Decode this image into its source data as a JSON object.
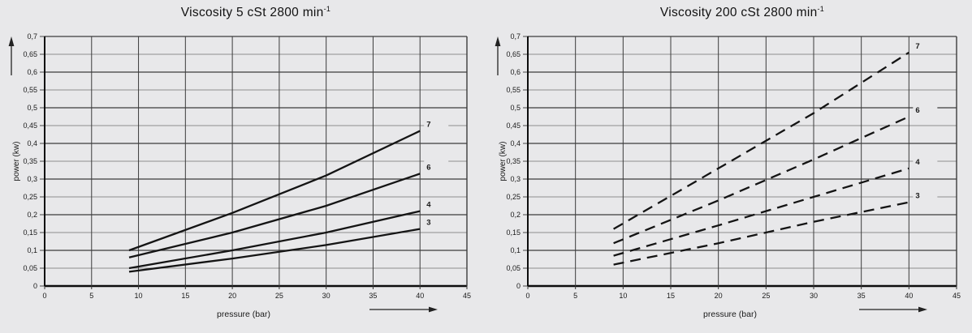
{
  "colors": {
    "background": "#e8e8ea",
    "axis": "#0d0d0d",
    "grid_major": "#3c3c3c",
    "grid_minor": "#8e8e8e",
    "curve": "#141414",
    "text": "#1a1a1a",
    "arrow": "#222222"
  },
  "chart_data": [
    {
      "type": "line",
      "title": "Viscosity 5 cSt 2800 min",
      "title_superscript": "-1",
      "xlabel": "pressure (bar)",
      "ylabel": "power (kw)",
      "xlim": [
        0,
        45
      ],
      "ylim": [
        0,
        0.7
      ],
      "x_ticks": [
        0,
        5,
        10,
        15,
        20,
        25,
        30,
        35,
        40,
        45
      ],
      "x_tick_labels": [
        "0",
        "5",
        "10",
        "15",
        "20",
        "25",
        "30",
        "35",
        "40",
        "45"
      ],
      "y_ticks": [
        0,
        0.05,
        0.1,
        0.15,
        0.2,
        0.25,
        0.3,
        0.35,
        0.4,
        0.45,
        0.5,
        0.55,
        0.6,
        0.65,
        0.7
      ],
      "y_tick_labels": [
        "0",
        "0,05",
        "0,1",
        "0,15",
        "0,2",
        "0,25",
        "0,3",
        "0,35",
        "0,4",
        "0,45",
        "0,5",
        "0,55",
        "0,6",
        "0,65",
        "0,7"
      ],
      "grid": true,
      "legend_position": "curve-end-labels",
      "line_style": "solid",
      "series": [
        {
          "name": "7",
          "points": [
            [
              9,
              0.1
            ],
            [
              20,
              0.205
            ],
            [
              30,
              0.31
            ],
            [
              40,
              0.435
            ]
          ]
        },
        {
          "name": "6",
          "points": [
            [
              9,
              0.08
            ],
            [
              20,
              0.15
            ],
            [
              30,
              0.225
            ],
            [
              40,
              0.315
            ]
          ]
        },
        {
          "name": "4",
          "points": [
            [
              9,
              0.05
            ],
            [
              20,
              0.1
            ],
            [
              30,
              0.15
            ],
            [
              40,
              0.21
            ]
          ]
        },
        {
          "name": "3",
          "points": [
            [
              9,
              0.04
            ],
            [
              20,
              0.077
            ],
            [
              30,
              0.115
            ],
            [
              40,
              0.16
            ]
          ]
        }
      ]
    },
    {
      "type": "line",
      "title": "Viscosity 200 cSt 2800 min",
      "title_superscript": "-1",
      "xlabel": "pressure (bar)",
      "ylabel": "power (kw)",
      "xlim": [
        0,
        45
      ],
      "ylim": [
        0,
        0.7
      ],
      "x_ticks": [
        0,
        5,
        10,
        15,
        20,
        25,
        30,
        35,
        40,
        45
      ],
      "x_tick_labels": [
        "0",
        "5",
        "10",
        "15",
        "20",
        "25",
        "30",
        "35",
        "40",
        "45"
      ],
      "y_ticks": [
        0,
        0.05,
        0.1,
        0.15,
        0.2,
        0.25,
        0.3,
        0.35,
        0.4,
        0.45,
        0.5,
        0.55,
        0.6,
        0.65,
        0.7
      ],
      "y_tick_labels": [
        "0",
        "0,05",
        "0,1",
        "0,15",
        "0,2",
        "0,25",
        "0,3",
        "0,35",
        "0,4",
        "0,45",
        "0,5",
        "0,55",
        "0,6",
        "0,65",
        "0,7"
      ],
      "grid": true,
      "legend_position": "curve-end-labels",
      "line_style": "dashed",
      "series": [
        {
          "name": "7",
          "points": [
            [
              9,
              0.16
            ],
            [
              20,
              0.33
            ],
            [
              30,
              0.485
            ],
            [
              40,
              0.655
            ]
          ]
        },
        {
          "name": "6",
          "points": [
            [
              9,
              0.12
            ],
            [
              20,
              0.24
            ],
            [
              30,
              0.355
            ],
            [
              40,
              0.475
            ]
          ]
        },
        {
          "name": "4",
          "points": [
            [
              9,
              0.085
            ],
            [
              20,
              0.17
            ],
            [
              30,
              0.25
            ],
            [
              40,
              0.33
            ]
          ]
        },
        {
          "name": "3",
          "points": [
            [
              9,
              0.06
            ],
            [
              20,
              0.12
            ],
            [
              30,
              0.18
            ],
            [
              40,
              0.235
            ]
          ]
        }
      ]
    }
  ]
}
